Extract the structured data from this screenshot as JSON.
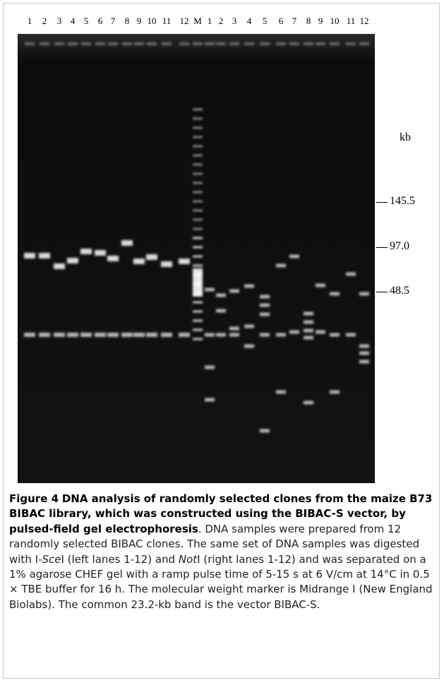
{
  "lane_labels": [
    "1",
    "2",
    "3",
    "4",
    "5",
    "6",
    "7",
    "8",
    "9",
    "10",
    "11",
    "12",
    "M",
    "1",
    "2",
    "3",
    "4",
    "5",
    "6",
    "7",
    "8",
    "9",
    "10",
    "11",
    "12"
  ],
  "size_marker": {
    "unit": "kb",
    "labels": [
      "145.5",
      "97.0",
      "48.5"
    ]
  },
  "caption": {
    "label": "Figure 4",
    "title": "DNA analysis of randomly selected clones from the maize B73 BIBAC library, which was constructed using the BIBAC-S vector, by pulsed-field gel electrophoresis",
    "text_1": ". DNA samples were prepared from 12 randomly selected BIBAC clones. The same set of DNA samples was digested with I-",
    "italic_1": "Sce",
    "text_2": "I (left lanes 1-12) and ",
    "italic_2": "Not",
    "text_3": "I (right lanes 1-12) and was separated on a 1% agarose CHEF gel with a ramp pulse time of 5-15 s at 6 V/cm at 14°C in 0.5 × TBE buffer for 16 h. The molecular weight marker is Midrange I (New England Biolabs). The common 23.2-kb band is the vector BIBAC-S."
  }
}
